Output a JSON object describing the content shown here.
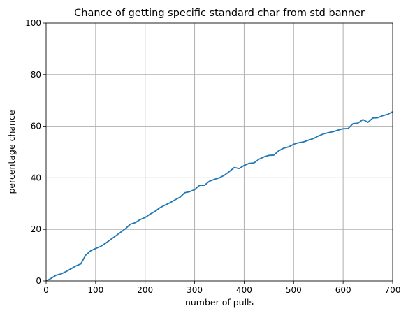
{
  "chart_data": {
    "type": "line",
    "title": "Chance of getting specific standard char from std banner",
    "xlabel": "number of pulls",
    "ylabel": "percentage chance",
    "xlim": [
      0,
      700
    ],
    "ylim": [
      0,
      100
    ],
    "xticks": [
      0,
      100,
      200,
      300,
      400,
      500,
      600,
      700
    ],
    "yticks": [
      0,
      20,
      40,
      60,
      80,
      100
    ],
    "grid": true,
    "series": [
      {
        "color": "#1f77b4",
        "x": [
          0,
          10,
          20,
          30,
          40,
          50,
          60,
          70,
          80,
          90,
          100,
          110,
          120,
          130,
          140,
          150,
          160,
          170,
          180,
          190,
          200,
          210,
          220,
          230,
          240,
          250,
          260,
          270,
          280,
          290,
          300,
          310,
          320,
          330,
          340,
          350,
          360,
          370,
          380,
          390,
          400,
          410,
          420,
          430,
          440,
          450,
          460,
          470,
          480,
          490,
          500,
          510,
          520,
          530,
          540,
          550,
          560,
          570,
          580,
          590,
          600,
          610,
          620,
          630,
          640,
          650,
          660,
          670,
          680,
          690,
          700
        ],
        "y": [
          0,
          1,
          2.2,
          2.7,
          3.6,
          4.7,
          5.8,
          6.6,
          10,
          11.7,
          12.6,
          13.4,
          14.6,
          16,
          17.4,
          18.8,
          20.2,
          22,
          22.6,
          23.8,
          24.6,
          25.9,
          27,
          28.4,
          29.4,
          30.3,
          31.4,
          32.4,
          34.2,
          34.6,
          35.4,
          37.1,
          37.1,
          38.7,
          39.4,
          40,
          41,
          42.4,
          44,
          43.6,
          44.8,
          45.6,
          45.8,
          47.2,
          48.1,
          48.7,
          48.8,
          50.5,
          51.5,
          52,
          53,
          53.6,
          53.9,
          54.6,
          55.2,
          56.2,
          57,
          57.5,
          57.9,
          58.5,
          59,
          59.1,
          61,
          61.2,
          62.6,
          61.5,
          63.2,
          63.3,
          64.1,
          64.6,
          65.6
        ]
      }
    ]
  }
}
